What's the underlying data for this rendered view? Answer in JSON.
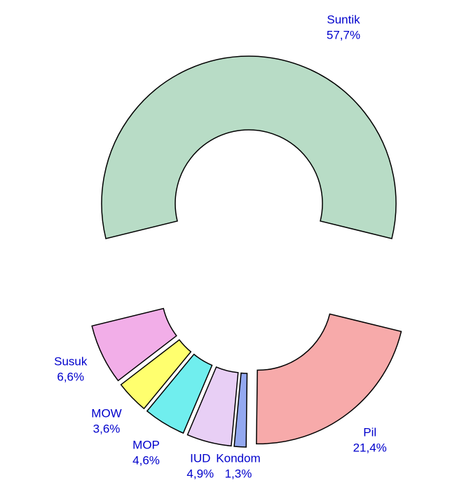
{
  "chart_data": {
    "type": "donut",
    "categories": [
      "Suntik",
      "Pil",
      "Kondom",
      "IUD",
      "MOP",
      "MOW",
      "Susuk"
    ],
    "values": [
      57.7,
      21.4,
      1.3,
      4.9,
      4.6,
      3.6,
      6.6
    ],
    "value_labels": [
      "57,7%",
      "21,4%",
      "1,3%",
      "4,9%",
      "4,6%",
      "3,6%",
      "6,6%"
    ],
    "colors": [
      "#b8dcc6",
      "#f7aaaa",
      "#93a8f0",
      "#e8cff5",
      "#70eeee",
      "#ffff6e",
      "#f2aee8"
    ]
  }
}
